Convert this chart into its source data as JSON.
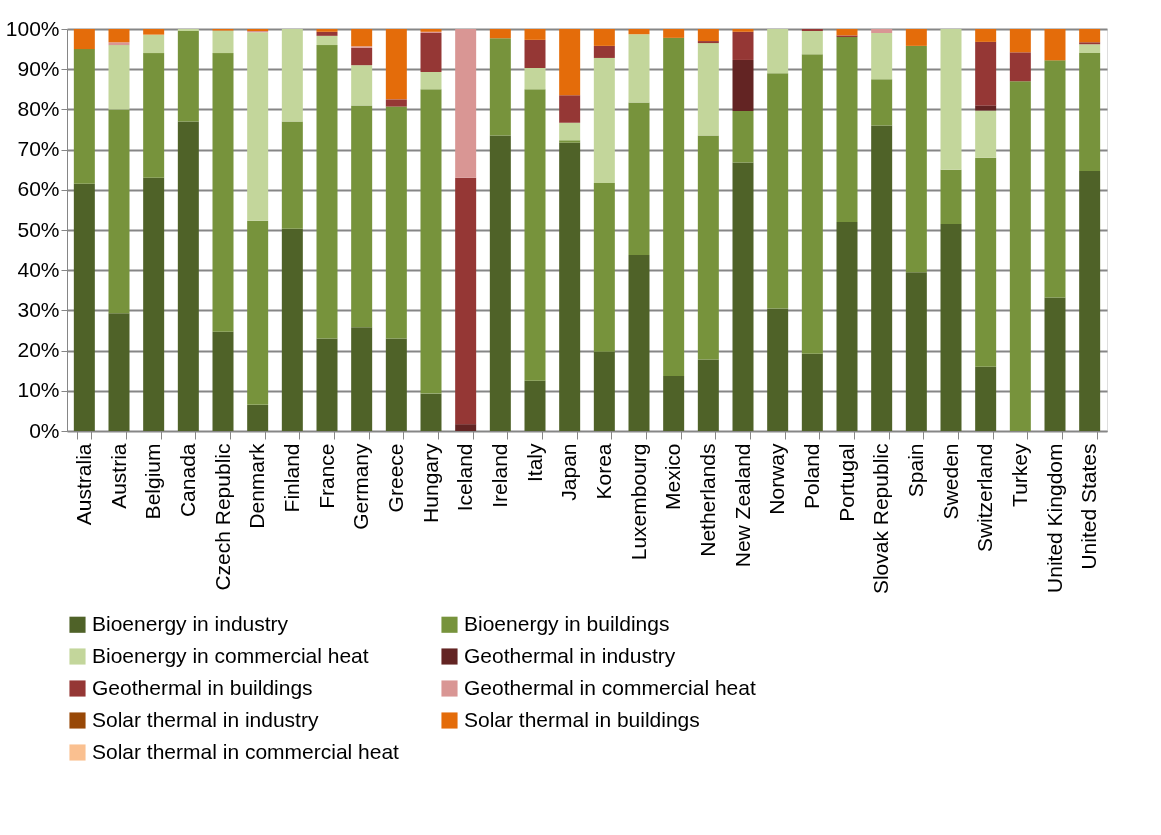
{
  "chart_data": {
    "type": "bar",
    "stacked": true,
    "categories": [
      "Australia",
      "Austria",
      "Belgium",
      "Canada",
      "Czech Republic",
      "Denmark",
      "Finland",
      "France",
      "Germany",
      "Greece",
      "Hungary",
      "Iceland",
      "Ireland",
      "Italy",
      "Japan",
      "Korea",
      "Luxembourg",
      "Mexico",
      "Netherlands",
      "New Zealand",
      "Norway",
      "Poland",
      "Portugal",
      "Slovak Republic",
      "Spain",
      "Sweden",
      "Switzerland",
      "Turkey",
      "United Kingdom",
      "United States"
    ],
    "series": [
      {
        "name": "Bioenergy in industry",
        "color": "#4f6228",
        "values": [
          61.5,
          29.3,
          63,
          77,
          24.7,
          6.5,
          50.3,
          23,
          25.8,
          23,
          9.3,
          null,
          73.5,
          12.5,
          71.7,
          19.7,
          43.8,
          13.7,
          17.8,
          66.8,
          30.5,
          19.2,
          52,
          76,
          39.5,
          51.5,
          16,
          null,
          33.2,
          64.7
        ]
      },
      {
        "name": "Bioenergy in buildings",
        "color": "#77933c",
        "values": [
          33.5,
          50.7,
          31,
          22.5,
          69.3,
          45.8,
          26.7,
          73,
          55.2,
          57.7,
          75.7,
          null,
          24.2,
          72.5,
          0.6,
          42,
          37.9,
          84.1,
          55.7,
          12.8,
          58.5,
          74.5,
          46,
          11.5,
          56.3,
          13.5,
          52,
          87,
          59,
          29.3
        ]
      },
      {
        "name": "Bioenergy in commercial heat",
        "color": "#c3d69b",
        "values": [
          null,
          16,
          4.6,
          0.5,
          5.6,
          46.9,
          23,
          2.3,
          10,
          null,
          4.3,
          null,
          null,
          5.3,
          4.4,
          31.1,
          17,
          null,
          23,
          null,
          11,
          5.8,
          null,
          11.5,
          null,
          35,
          11.7,
          null,
          null,
          2.2
        ]
      },
      {
        "name": "Geothermal in industry",
        "color": "#632423",
        "values": [
          null,
          null,
          null,
          null,
          null,
          null,
          null,
          null,
          null,
          null,
          null,
          1.7,
          null,
          null,
          null,
          null,
          null,
          null,
          null,
          12.7,
          null,
          null,
          null,
          null,
          null,
          null,
          1.3,
          null,
          null,
          null
        ]
      },
      {
        "name": "Geothermal in buildings",
        "color": "#953735",
        "values": [
          null,
          null,
          null,
          null,
          null,
          null,
          null,
          1,
          4.3,
          1.8,
          9.7,
          61.3,
          null,
          7,
          6.8,
          3,
          null,
          null,
          0.5,
          7,
          null,
          0.5,
          0.4,
          null,
          null,
          null,
          15.8,
          7.2,
          null,
          0.5
        ]
      },
      {
        "name": "Geothermal in commercial heat",
        "color": "#d99694",
        "values": [
          null,
          0.7,
          null,
          null,
          null,
          0.3,
          null,
          null,
          0.4,
          null,
          0.3,
          37,
          null,
          null,
          null,
          null,
          null,
          null,
          null,
          null,
          null,
          null,
          null,
          1,
          null,
          null,
          null,
          null,
          null,
          null
        ]
      },
      {
        "name": "Solar thermal in industry",
        "color": "#984807",
        "values": [
          null,
          null,
          null,
          null,
          null,
          null,
          null,
          null,
          null,
          null,
          null,
          null,
          null,
          null,
          null,
          null,
          null,
          null,
          null,
          null,
          null,
          null,
          null,
          null,
          null,
          null,
          null,
          null,
          null,
          null
        ]
      },
      {
        "name": "Solar thermal in buildings",
        "color": "#e46c0a",
        "values": [
          5,
          3.3,
          1.4,
          null,
          0.4,
          0.5,
          null,
          0.7,
          4.3,
          17.5,
          0.7,
          null,
          2.3,
          2.7,
          16.5,
          4.2,
          1.3,
          2.2,
          3,
          0.7,
          null,
          null,
          1.6,
          null,
          4.2,
          null,
          3.2,
          5.8,
          7.8,
          3.3
        ]
      },
      {
        "name": "Solar thermal in commercial heat",
        "color": "#fac090",
        "values": [
          null,
          null,
          null,
          null,
          null,
          null,
          null,
          null,
          null,
          null,
          null,
          null,
          null,
          null,
          null,
          null,
          null,
          null,
          null,
          null,
          null,
          null,
          null,
          null,
          null,
          null,
          null,
          null,
          null,
          null
        ]
      }
    ],
    "ylim": [
      0,
      100
    ],
    "yticks": [
      {
        "value": 0,
        "label": "0%"
      },
      {
        "value": 10,
        "label": "10%"
      },
      {
        "value": 20,
        "label": "20%"
      },
      {
        "value": 30,
        "label": "30%"
      },
      {
        "value": 40,
        "label": "40%"
      },
      {
        "value": 50,
        "label": "50%"
      },
      {
        "value": 60,
        "label": "60%"
      },
      {
        "value": 70,
        "label": "70%"
      },
      {
        "value": 80,
        "label": "80%"
      },
      {
        "value": 90,
        "label": "90%"
      },
      {
        "value": 100,
        "label": "100%"
      }
    ],
    "grid": "y",
    "legend": "bottom"
  }
}
